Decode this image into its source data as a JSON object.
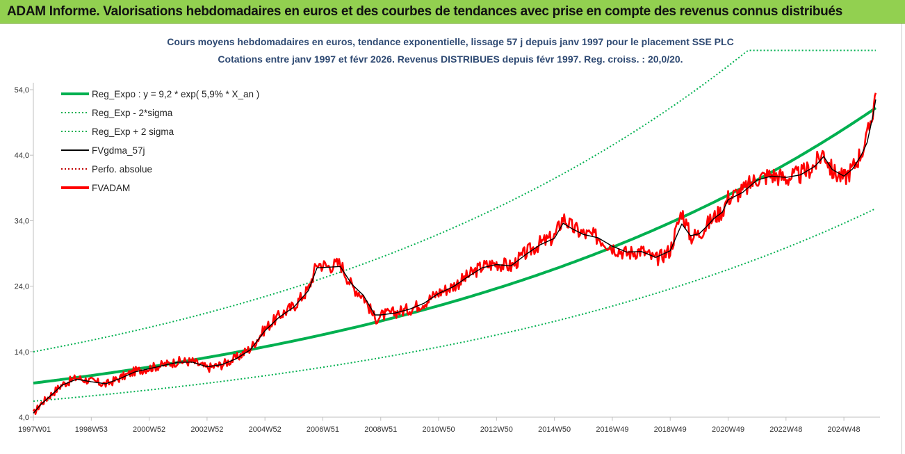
{
  "banner": {
    "title": "ADAM Informe. Valorisations hebdomadaires en euros et des courbes de tendances avec prise en compte des revenus connus distribués"
  },
  "colors": {
    "banner_bg": "#92d050",
    "regression": "#00b050",
    "smoothed": "#000000",
    "perf": "#c00000",
    "price": "#ff0000"
  },
  "chart_data": {
    "type": "line",
    "title_line1": "Cours moyens hebdomadaires en euros, tendance exponentielle, lissage 57 j depuis janv 1997 pour le placement SSE PLC",
    "title_line2": "Cotations entre janv 1997 et févr 2026. Revenus DISTRIBUES depuis févr 1997. Reg. croiss. : 20,0/20.",
    "ylim": [
      4,
      56
    ],
    "y_ticks": [
      "54,0",
      "44,0",
      "34,0",
      "24,0",
      "14,0",
      "4,0"
    ],
    "y_tick_values": [
      54,
      44,
      34,
      24,
      14,
      4
    ],
    "x_range": [
      1997.0,
      2026.15
    ],
    "x_ticks": [
      "1997W01",
      "1998W53",
      "2000W52",
      "2002W52",
      "2004W52",
      "2006W51",
      "2008W51",
      "2010W50",
      "2012W50",
      "2014W50",
      "2016W49",
      "2018W49",
      "2020W49",
      "2022W48",
      "2024W48"
    ],
    "x_tick_years": [
      1997.0,
      1999.0,
      2001.0,
      2003.0,
      2005.0,
      2007.0,
      2009.0,
      2011.0,
      2013.0,
      2015.0,
      2017.0,
      2019.0,
      2021.0,
      2023.0,
      2025.0
    ],
    "legend": [
      {
        "label": "Reg_Expo : y = 9,2 * exp( 5,9% *  X_an )",
        "style": "thick",
        "color": "#00b050"
      },
      {
        "label": "Reg_Exp - 2*sigma",
        "style": "dotted",
        "color": "#00b050"
      },
      {
        "label": "Reg_Exp + 2 sigma",
        "style": "dotted",
        "color": "#00b050"
      },
      {
        "label": "FVgdma_57j",
        "style": "solid",
        "color": "#000000"
      },
      {
        "label": "Perfo. absolue",
        "style": "dotted",
        "color": "#c00000"
      },
      {
        "label": "FVADAM",
        "style": "thick",
        "color": "#ff0000"
      }
    ],
    "regression": {
      "a": 9.2,
      "rate": 0.059,
      "upper_factor": 1.52,
      "lower_factor": 0.7,
      "upper_cap": 60.0
    },
    "series": [
      {
        "name": "FVADAM",
        "x": [
          1997.0,
          1997.25,
          1997.5,
          1998.0,
          1998.5,
          1999.0,
          1999.5,
          2000.0,
          2000.5,
          2001.0,
          2001.5,
          2002.0,
          2002.5,
          2003.0,
          2003.5,
          2004.0,
          2004.5,
          2005.0,
          2005.5,
          2006.0,
          2006.5,
          2006.8,
          2007.2,
          2007.6,
          2008.0,
          2008.4,
          2008.8,
          2009.0,
          2009.5,
          2010.0,
          2010.5,
          2011.0,
          2011.5,
          2012.0,
          2012.5,
          2013.0,
          2013.5,
          2014.0,
          2014.5,
          2015.0,
          2015.3,
          2015.6,
          2016.0,
          2016.5,
          2017.0,
          2017.5,
          2018.0,
          2018.5,
          2019.0,
          2019.4,
          2019.7,
          2020.0,
          2020.3,
          2020.5,
          2020.8,
          2021.0,
          2021.5,
          2022.0,
          2022.5,
          2023.0,
          2023.5,
          2024.0,
          2024.3,
          2024.6,
          2025.0,
          2025.3,
          2025.6,
          2025.8,
          2026.0,
          2026.1
        ],
        "values": [
          4.5,
          6.0,
          7.0,
          9.0,
          10.0,
          9.5,
          9.0,
          10.0,
          11.0,
          11.5,
          12.0,
          12.5,
          12.5,
          11.5,
          12.0,
          13.0,
          14.5,
          17.5,
          19.5,
          21.0,
          23.5,
          27.5,
          27.0,
          27.5,
          24.0,
          22.5,
          19.0,
          19.5,
          20.0,
          20.5,
          21.5,
          23.0,
          24.0,
          25.5,
          27.0,
          27.5,
          27.0,
          29.0,
          30.5,
          31.5,
          34.5,
          33.0,
          32.0,
          31.5,
          30.0,
          29.0,
          29.5,
          28.0,
          29.5,
          35.5,
          31.5,
          32.0,
          33.5,
          34.5,
          35.5,
          37.5,
          38.5,
          40.5,
          41.0,
          40.5,
          41.0,
          42.5,
          44.5,
          41.5,
          40.5,
          42.0,
          44.5,
          46.5,
          51.0,
          53.5
        ]
      },
      {
        "name": "FVgdma_57j",
        "x": [
          1997.0,
          1997.25,
          1997.5,
          1998.0,
          1998.5,
          1999.0,
          1999.5,
          2000.0,
          2000.5,
          2001.0,
          2001.5,
          2002.0,
          2002.5,
          2003.0,
          2003.5,
          2004.0,
          2004.5,
          2005.0,
          2005.5,
          2006.0,
          2006.5,
          2006.8,
          2007.2,
          2007.6,
          2008.0,
          2008.4,
          2008.8,
          2009.0,
          2009.5,
          2010.0,
          2010.5,
          2011.0,
          2011.5,
          2012.0,
          2012.5,
          2013.0,
          2013.5,
          2014.0,
          2014.5,
          2015.0,
          2015.3,
          2015.6,
          2016.0,
          2016.5,
          2017.0,
          2017.5,
          2018.0,
          2018.5,
          2019.0,
          2019.4,
          2019.7,
          2020.0,
          2020.3,
          2020.5,
          2020.8,
          2021.0,
          2021.5,
          2022.0,
          2022.5,
          2023.0,
          2023.5,
          2024.0,
          2024.3,
          2024.6,
          2025.0,
          2025.3,
          2025.6,
          2025.8,
          2026.0,
          2026.1
        ],
        "values": [
          4.6,
          5.9,
          6.9,
          8.9,
          9.8,
          9.4,
          9.1,
          9.9,
          10.9,
          11.4,
          11.9,
          12.4,
          12.4,
          11.7,
          12.0,
          12.9,
          14.3,
          17.2,
          19.3,
          20.8,
          23.3,
          26.8,
          26.9,
          27.0,
          24.3,
          22.6,
          19.6,
          19.6,
          19.9,
          20.5,
          21.4,
          22.9,
          23.9,
          25.4,
          26.8,
          27.3,
          27.1,
          28.8,
          30.3,
          31.3,
          33.6,
          32.8,
          31.9,
          31.4,
          30.1,
          29.2,
          29.3,
          28.4,
          29.4,
          33.5,
          31.7,
          32.0,
          33.3,
          34.3,
          35.3,
          37.2,
          38.3,
          40.2,
          40.8,
          40.6,
          41.0,
          42.3,
          43.8,
          41.8,
          40.8,
          41.9,
          44.0,
          45.9,
          50.0,
          52.5
        ]
      }
    ]
  }
}
